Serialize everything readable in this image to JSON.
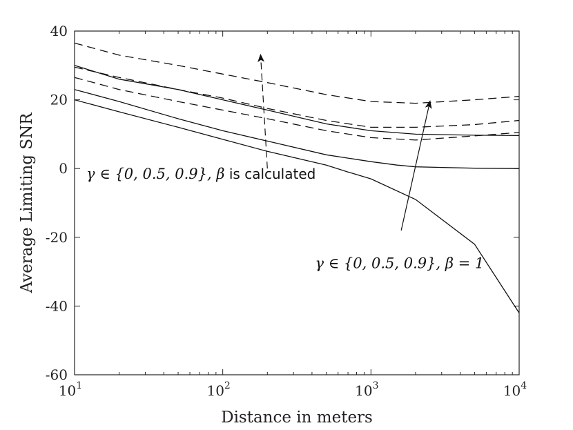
{
  "chart_data": {
    "type": "line",
    "xlabel": "Distance in meters",
    "ylabel": "Average Limiting SNR",
    "x_scale": "log",
    "xlim": [
      10,
      10000
    ],
    "ylim": [
      -60,
      40
    ],
    "x_ticks": [
      10,
      100,
      1000,
      10000
    ],
    "x_tick_labels": [
      {
        "base": "10",
        "exp": "1"
      },
      {
        "base": "10",
        "exp": "2"
      },
      {
        "base": "10",
        "exp": "3"
      },
      {
        "base": "10",
        "exp": "4"
      }
    ],
    "y_ticks": [
      -60,
      -40,
      -20,
      0,
      20,
      40
    ],
    "y_tick_labels": [
      "-60",
      "-40",
      "-20",
      "0",
      "20",
      "40"
    ],
    "grid": false,
    "legend": "none",
    "series": [
      {
        "style": "solid",
        "x": [
          10,
          20,
          50,
          100,
          200,
          500,
          700,
          1000,
          2000,
          5000,
          10000
        ],
        "y": [
          20,
          16.5,
          12,
          8.5,
          5,
          1,
          -1,
          -3,
          -9,
          -22,
          -42
        ]
      },
      {
        "style": "solid",
        "x": [
          10,
          20,
          50,
          100,
          200,
          500,
          1000,
          1500,
          2000,
          5000,
          10000
        ],
        "y": [
          23,
          19.5,
          14.5,
          11,
          8,
          4,
          2,
          1,
          0.5,
          0.1,
          0
        ]
      },
      {
        "style": "solid",
        "x": [
          10,
          20,
          50,
          100,
          200,
          500,
          1000,
          2000,
          5000,
          10000
        ],
        "y": [
          30,
          26,
          23,
          20,
          17,
          13,
          11,
          10,
          9.7,
          9.6
        ]
      },
      {
        "style": "dashed",
        "x": [
          10,
          20,
          50,
          100,
          200,
          500,
          1000,
          2000,
          5000,
          10000
        ],
        "y": [
          26.5,
          23,
          19.5,
          17,
          14.5,
          11,
          9,
          8.3,
          9.5,
          10.5
        ]
      },
      {
        "style": "dashed",
        "x": [
          10,
          20,
          50,
          100,
          200,
          500,
          1000,
          2000,
          5000,
          10000
        ],
        "y": [
          29.5,
          26.5,
          23,
          20.5,
          17.5,
          14,
          12,
          12,
          12.8,
          14
        ]
      },
      {
        "style": "dashed",
        "x": [
          10,
          20,
          50,
          100,
          200,
          500,
          1000,
          2000,
          5000,
          10000
        ],
        "y": [
          36.5,
          33,
          30,
          27.5,
          25,
          21.5,
          19.5,
          19,
          20,
          21
        ]
      }
    ],
    "annotations": [
      {
        "id": "dashed",
        "math": "γ ∈ {0, 0.5, 0.9}, β",
        "text": " is calculated",
        "x": 12,
        "y": -3,
        "arrow_from": [
          200,
          0
        ],
        "arrow_to": [
          180,
          33
        ],
        "arrow_style": "dashed"
      },
      {
        "id": "solid",
        "math": "γ ∈ {0, 0.5, 0.9}, β = 1",
        "text": "",
        "x": 420,
        "y": -29,
        "arrow_from": [
          1600,
          -18
        ],
        "arrow_to": [
          2500,
          19.5
        ],
        "arrow_style": "solid"
      }
    ]
  }
}
